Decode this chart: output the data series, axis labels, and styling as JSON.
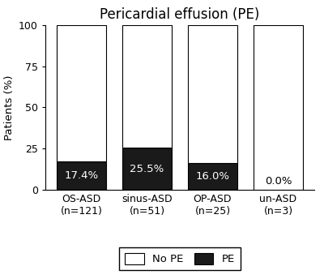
{
  "title": "Pericardial effusion (PE)",
  "categories": [
    "OS-ASD\n(n=121)",
    "sinus-ASD\n(n=51)",
    "OP-ASD\n(n=25)",
    "un-ASD\n(n=3)"
  ],
  "pe_values": [
    17.4,
    25.5,
    16.0,
    0.0
  ],
  "no_pe_values": [
    82.6,
    74.5,
    84.0,
    100.0
  ],
  "pe_labels": [
    "17.4%",
    "25.5%",
    "16.0%",
    "0.0%"
  ],
  "bar_color_pe": "#1a1a1a",
  "bar_color_no_pe": "#ffffff",
  "bar_edge_color": "#000000",
  "ylabel": "Patients (%)",
  "ylim": [
    0,
    100
  ],
  "yticks": [
    0,
    25,
    50,
    75,
    100
  ],
  "legend_labels": [
    "No PE",
    "PE"
  ],
  "title_fontsize": 12,
  "label_fontsize": 9.5,
  "tick_fontsize": 9,
  "legend_fontsize": 9.5,
  "bar_width": 0.75,
  "background_color": "#ffffff"
}
